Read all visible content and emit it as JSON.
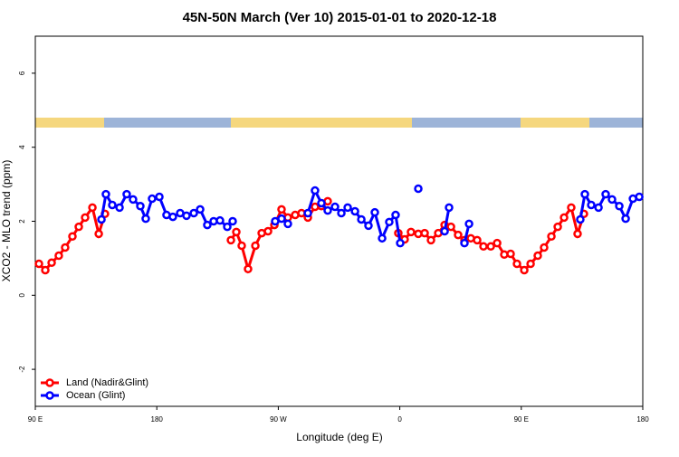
{
  "chart_data": {
    "type": "line",
    "title": "45N-50N March (Ver 10)   2015-01-01 to 2020-12-18",
    "xlabel": "Longitude (deg E)",
    "ylabel": "XCO2 - MLO trend (ppm)",
    "xlim": [
      90,
      540
    ],
    "ylim": [
      -3,
      7
    ],
    "xticks": [
      {
        "value": 90,
        "label": "90 E"
      },
      {
        "value": 180,
        "label": "180"
      },
      {
        "value": 270,
        "label": "90 W"
      },
      {
        "value": 360,
        "label": "0"
      },
      {
        "value": 450,
        "label": "90 E"
      },
      {
        "value": 540,
        "label": "180"
      }
    ],
    "yticks": [
      -2,
      0,
      2,
      4,
      6
    ],
    "legend": "bottom-left",
    "series": [
      {
        "name": "Land (Nadir&Glint)",
        "color": "#ff0000",
        "x": [
          92.7,
          97.4,
          102.1,
          107.4,
          112.1,
          117.5,
          122.2,
          126.9,
          132.3,
          137.0,
          141.6,
          null,
          234.9,
          238.9,
          242.9,
          247.6,
          253.0,
          257.7,
          262.4,
          267.1,
          272.4,
          277.1,
          282.5,
          287.2,
          291.9,
          297.2,
          301.9,
          306.6,
          null,
          358.9,
          363.6,
          368.3,
          373.7,
          378.4,
          383.1,
          388.5,
          393.2,
          397.9,
          403.2,
          407.9,
          412.6,
          417.3,
          422.0,
          427.4,
          432.1,
          437.4,
          442.1,
          446.8,
          452.2,
          456.9,
          462.2,
          466.9,
          472.3,
          477.0,
          481.7,
          487.0,
          491.7,
          496.4
        ],
        "values": [
          0.85,
          0.68,
          0.88,
          1.07,
          1.29,
          1.59,
          1.85,
          2.1,
          2.37,
          1.66,
          2.2,
          null,
          1.49,
          1.71,
          1.34,
          0.71,
          1.34,
          1.68,
          1.73,
          1.9,
          2.32,
          2.1,
          2.17,
          2.22,
          2.1,
          2.39,
          2.41,
          2.54,
          null,
          1.68,
          1.51,
          1.71,
          1.66,
          1.68,
          1.49,
          1.68,
          1.9,
          1.85,
          1.63,
          1.49,
          1.54,
          1.49,
          1.32,
          1.32,
          1.41,
          1.1,
          1.12,
          0.85,
          0.68,
          0.85,
          1.07,
          1.29,
          1.59,
          1.85,
          2.1,
          2.37,
          1.66,
          2.2
        ]
      },
      {
        "name": "Ocean (Glint)",
        "color": "#0000ff",
        "x": [
          139.0,
          142.3,
          147.0,
          152.4,
          157.7,
          162.4,
          167.8,
          171.8,
          176.5,
          181.9,
          187.2,
          191.9,
          197.3,
          202.0,
          207.4,
          212.1,
          217.4,
          222.1,
          226.8,
          232.2,
          236.2,
          null,
          267.7,
          272.4,
          277.1,
          null,
          291.9,
          297.2,
          301.9,
          306.6,
          312.0,
          316.7,
          321.4,
          326.8,
          331.5,
          336.8,
          341.5,
          346.9,
          352.2,
          356.9,
          360.3,
          null,
          373.7,
          null,
          393.2,
          396.5,
          null,
          407.9,
          411.3,
          null,
          493.7,
          497.1,
          501.8,
          507.2,
          512.5,
          517.2,
          522.6,
          527.3,
          532.7,
          537.4
        ],
        "values": [
          2.05,
          2.73,
          2.44,
          2.37,
          2.73,
          2.59,
          2.41,
          2.07,
          2.61,
          2.66,
          2.17,
          2.12,
          2.22,
          2.15,
          2.22,
          2.32,
          1.9,
          2.0,
          2.02,
          1.85,
          2.0,
          null,
          2.0,
          2.07,
          1.93,
          null,
          2.22,
          2.83,
          2.49,
          2.29,
          2.39,
          2.22,
          2.37,
          2.27,
          2.05,
          1.88,
          2.24,
          1.54,
          1.98,
          2.17,
          1.41,
          null,
          2.88,
          null,
          1.73,
          2.37,
          null,
          1.41,
          1.93,
          null,
          2.05,
          2.73,
          2.44,
          2.37,
          2.73,
          2.59,
          2.41,
          2.07,
          2.61,
          2.66
        ]
      }
    ]
  }
}
